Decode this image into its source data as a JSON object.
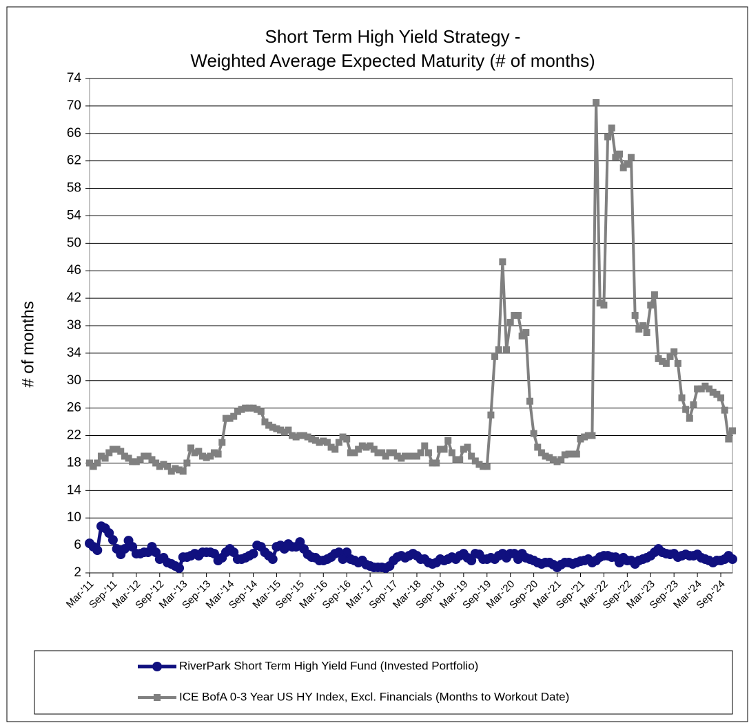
{
  "chart_data": {
    "type": "line",
    "title": "Short Term High Yield Strategy -",
    "subtitle": "Weighted Average Expected Maturity (# of months)",
    "y_label": "# of months",
    "categories": [
      "Mar-'11",
      null,
      null,
      null,
      null,
      null,
      "Sep-'11",
      null,
      null,
      null,
      null,
      null,
      "Mar-'12",
      null,
      null,
      null,
      null,
      null,
      "Sep-'12",
      null,
      null,
      null,
      null,
      null,
      "Mar-'13",
      null,
      null,
      null,
      null,
      null,
      "Sep-'13",
      null,
      null,
      null,
      null,
      null,
      "Mar-'14",
      null,
      null,
      null,
      null,
      null,
      "Sep-'14",
      null,
      null,
      null,
      null,
      null,
      "Mar-'15",
      null,
      null,
      null,
      null,
      null,
      "Sep-'15",
      null,
      null,
      null,
      null,
      null,
      "Mar-'16",
      null,
      null,
      null,
      null,
      null,
      "Sep-'16",
      null,
      null,
      null,
      null,
      null,
      "Mar-'17",
      null,
      null,
      null,
      null,
      null,
      "Sep-'17",
      null,
      null,
      null,
      null,
      null,
      "Mar-'18",
      null,
      null,
      null,
      null,
      null,
      "Sep-'18",
      null,
      null,
      null,
      null,
      null,
      "Mar-'19",
      null,
      null,
      null,
      null,
      null,
      "Sep-'19",
      null,
      null,
      null,
      null,
      null,
      "Mar-'20",
      null,
      null,
      null,
      null,
      null,
      "Sep-'20",
      null,
      null,
      null,
      null,
      null,
      "Mar-'21",
      null,
      null,
      null,
      null,
      null,
      "Sep-'21",
      null,
      null,
      null,
      null,
      null,
      "Mar-'22",
      null,
      null,
      null,
      null,
      null,
      "Sep-'22",
      null,
      null,
      null,
      null,
      null,
      "Mar-'23",
      null,
      null,
      null,
      null,
      null,
      "Sep-'23",
      null,
      null,
      null,
      null,
      null,
      "Mar-'24",
      null,
      null,
      null,
      null,
      null,
      "Sep-'24",
      null,
      null,
      null
    ],
    "series": [
      {
        "name": "RiverPark Short Term High Yield Fund (Invested Portfolio)",
        "color": "#10107f",
        "marker": "circle",
        "values": [
          6.3,
          5.8,
          5.3,
          8.8,
          8.5,
          7.8,
          6.8,
          5.5,
          4.7,
          5.5,
          6.7,
          5.8,
          4.8,
          4.8,
          5,
          5,
          5.8,
          5,
          4,
          4.2,
          3.5,
          3.3,
          3,
          2.7,
          4.3,
          4.3,
          4.5,
          4.8,
          4.5,
          5,
          5,
          5,
          4.8,
          3.8,
          4.2,
          5,
          5.5,
          5,
          4,
          4,
          4.2,
          4.5,
          4.8,
          6,
          5.8,
          5,
          4.5,
          4,
          5.8,
          6,
          5.5,
          6.2,
          5.8,
          5.8,
          6.5,
          5.5,
          4.7,
          4.3,
          4.2,
          3.8,
          3.8,
          4,
          4.3,
          4.8,
          5,
          4,
          5,
          4,
          3.8,
          3.5,
          3.8,
          3.2,
          3,
          2.8,
          2.8,
          2.8,
          2.7,
          3,
          3.8,
          4.3,
          4.5,
          4.2,
          4.5,
          4.8,
          4.5,
          4,
          4,
          3.5,
          3.3,
          3.5,
          4,
          3.8,
          4,
          4.3,
          4,
          4.5,
          4.8,
          4.2,
          3.8,
          4.8,
          4.7,
          4,
          4,
          4.2,
          4,
          4.5,
          4.8,
          4.2,
          4.8,
          4.8,
          4,
          4.8,
          4.2,
          4,
          3.8,
          3.5,
          3.3,
          3.5,
          3.5,
          3.2,
          2.8,
          3.2,
          3.5,
          3.5,
          3.3,
          3.5,
          3.7,
          3.8,
          4,
          3.5,
          3.8,
          4.3,
          4.5,
          4.5,
          4.3,
          4.3,
          3.5,
          4.2,
          3.8,
          3.8,
          3.3,
          3.8,
          4,
          4.2,
          4.5,
          5,
          5.5,
          5,
          4.8,
          4.7,
          4.8,
          4.3,
          4.5,
          4.7,
          4.5,
          4.5,
          4.7,
          4.2,
          4,
          3.8,
          3.5,
          3.8,
          3.8,
          4,
          4.5,
          4
        ]
      },
      {
        "name": "ICE BofA 0-3 Year US HY Index, Excl. Financials (Months to Workout Date)",
        "color": "#808080",
        "marker": "square",
        "values": [
          18,
          17.5,
          18,
          19,
          18.7,
          19.5,
          20,
          20,
          19.7,
          19,
          18.7,
          18.2,
          18.2,
          18.5,
          19,
          19,
          18.5,
          18,
          17.5,
          17.8,
          17.5,
          16.8,
          17.2,
          17,
          16.8,
          18,
          20.2,
          19.5,
          19.7,
          19,
          18.8,
          19,
          19.5,
          19.3,
          21,
          24.5,
          24.5,
          24.8,
          25.5,
          25.8,
          26,
          26,
          26,
          25.8,
          25.5,
          24,
          23.5,
          23.2,
          23,
          22.8,
          22.5,
          22.8,
          22,
          21.8,
          22,
          22,
          21.8,
          21.5,
          21.3,
          21,
          21.2,
          21,
          20.3,
          20,
          21,
          21.8,
          21.5,
          19.5,
          19.5,
          20,
          20.5,
          20.3,
          20.5,
          20,
          19.5,
          19.5,
          19,
          19.5,
          19.5,
          19,
          18.7,
          19,
          19,
          19,
          19,
          19.5,
          20.5,
          19.5,
          18,
          18,
          20,
          20,
          21.3,
          19.5,
          18.5,
          18.5,
          20,
          20.3,
          19,
          18.3,
          17.8,
          17.5,
          17.5,
          25,
          33.5,
          34.5,
          47.3,
          34.5,
          38.5,
          39.5,
          39.5,
          36.5,
          37,
          27,
          22.3,
          20.3,
          19.5,
          19,
          18.8,
          18.5,
          18.2,
          18.5,
          19.2,
          19.3,
          19.3,
          19.3,
          21.5,
          21.8,
          22,
          22,
          70.5,
          41.3,
          41,
          65.5,
          66.8,
          62.5,
          63,
          61,
          61.5,
          62.5,
          39.5,
          37.5,
          38,
          37,
          41,
          42.5,
          33.2,
          32.8,
          32.5,
          33.5,
          34.2,
          32.5,
          27.5,
          25.8,
          24.5,
          26.5,
          28.8,
          28.8,
          29.2,
          28.8,
          28.3,
          28,
          27.5,
          25.7,
          21.5,
          22.7
        ]
      }
    ],
    "ylim": [
      2,
      74
    ],
    "yticks": [
      2,
      6,
      10,
      14,
      18,
      22,
      26,
      30,
      34,
      38,
      42,
      46,
      50,
      54,
      58,
      62,
      66,
      70,
      74
    ],
    "grid": true,
    "legend": "bottom"
  }
}
